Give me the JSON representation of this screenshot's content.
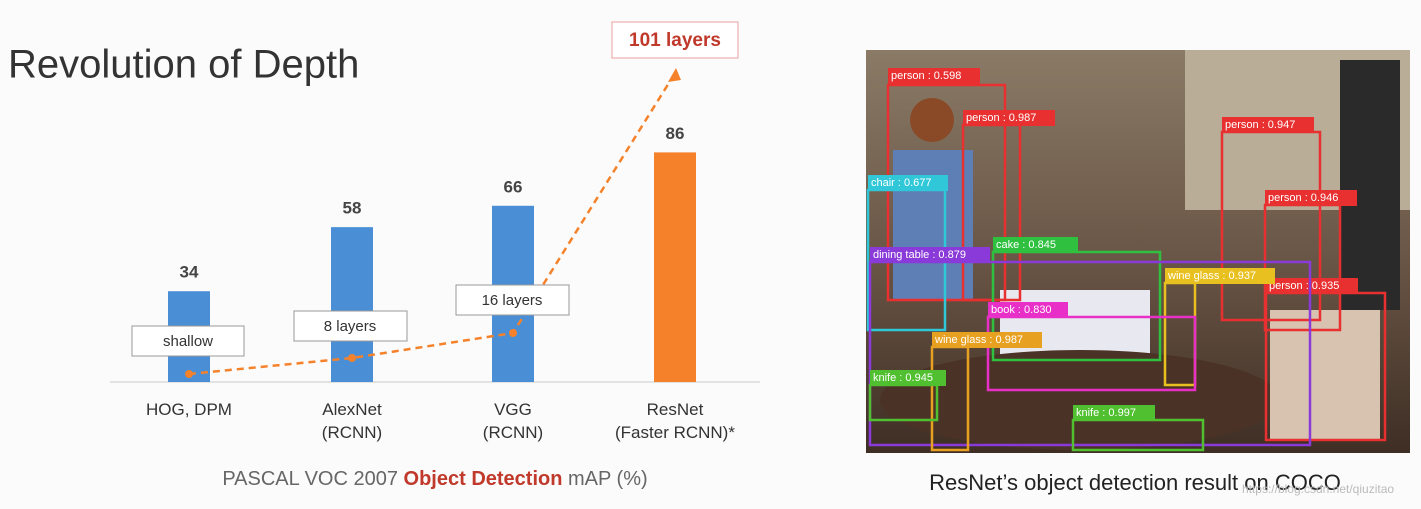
{
  "chart_data": {
    "type": "bar",
    "title": "Revolution of Depth",
    "categories": [
      "HOG, DPM",
      "AlexNet\n(RCNN)",
      "VGG\n(RCNN)",
      "ResNet\n(Faster RCNN)*"
    ],
    "values": [
      34,
      58,
      66,
      86
    ],
    "colors": [
      "#4a8fd6",
      "#4a8fd6",
      "#4a8fd6",
      "#f5822a"
    ],
    "ylim": [
      0,
      100
    ],
    "annotations": [
      "shallow",
      "8 layers",
      "16 layers",
      "101 layers"
    ],
    "xlabel_parts": [
      "PASCAL VOC 2007 ",
      "Object Detection",
      " mAP (%)"
    ]
  },
  "figure": {
    "caption": "ResNet’s object detection result on COCO",
    "watermark": "https://blog.csdn.net/qiuzitao",
    "detections": [
      "person : 0.598",
      "person : 0.987",
      "person : 0.947",
      "person : 0.946",
      "person : 0.935",
      "chair : 0.677",
      "cake : 0.845",
      "dining table : 0.879",
      "wine glass : 0.937",
      "book : 0.830",
      "wine glass : 0.987",
      "knife : 0.945",
      "knife : 0.997"
    ]
  }
}
